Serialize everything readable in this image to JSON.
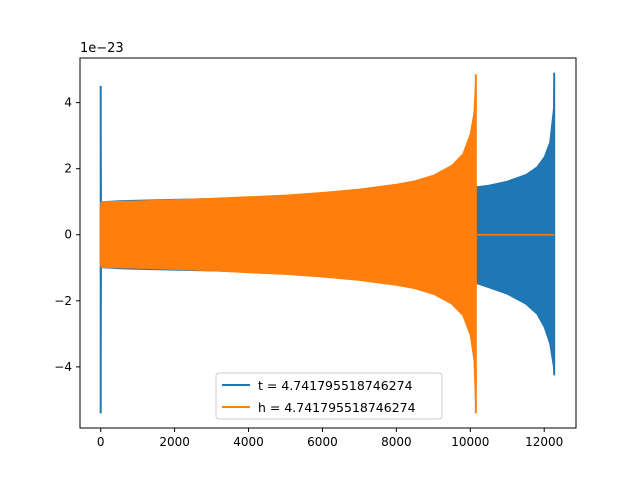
{
  "chart_data": {
    "type": "line",
    "title": "",
    "xlabel": "",
    "ylabel": "",
    "offset_label": "1e−23",
    "xlim": [
      -560,
      12860
    ],
    "ylim": [
      -5.85,
      5.35
    ],
    "xticks": [
      0,
      2000,
      4000,
      6000,
      8000,
      10000,
      12000
    ],
    "xtick_labels": [
      "0",
      "2000",
      "4000",
      "6000",
      "8000",
      "10000",
      "12000"
    ],
    "yticks": [
      -4,
      -2,
      0,
      2,
      4
    ],
    "ytick_labels": [
      "−4",
      "−2",
      "0",
      "2",
      "4"
    ],
    "grid": false,
    "legend_position": "lower center",
    "series": [
      {
        "name": "t = 4.741795518746274",
        "color": "#1f77b4",
        "envelope": {
          "x": [
            0,
            20,
            60,
            500,
            2000,
            4000,
            6000,
            8000,
            9000,
            10000,
            10150,
            10500,
            11000,
            11500,
            11800,
            12000,
            12150,
            12250,
            12270
          ],
          "upper": [
            4.5,
            1.0,
            1.0,
            1.03,
            1.07,
            1.12,
            1.18,
            1.28,
            1.35,
            1.43,
            1.45,
            1.5,
            1.62,
            1.82,
            2.05,
            2.35,
            2.8,
            3.8,
            4.9
          ],
          "lower": [
            -5.4,
            -1.0,
            -1.0,
            -1.03,
            -1.07,
            -1.12,
            -1.18,
            -1.28,
            -1.35,
            -1.43,
            -1.47,
            -1.6,
            -1.8,
            -2.1,
            -2.4,
            -2.8,
            -3.3,
            -4.0,
            -4.25
          ]
        },
        "spike_start": {
          "x": 0,
          "max": 4.5,
          "min": -5.4
        },
        "spike_end": {
          "x": 12270,
          "max": 4.9,
          "min": -4.25
        }
      },
      {
        "name": "h = 4.741795518746274",
        "color": "#ff7f0e",
        "envelope": {
          "x": [
            0,
            20,
            60,
            500,
            1000,
            2000,
            3000,
            4000,
            5000,
            6000,
            7000,
            8000,
            8500,
            9000,
            9500,
            9800,
            10000,
            10100,
            10150
          ],
          "upper": [
            0.95,
            1.0,
            1.0,
            1.01,
            1.02,
            1.06,
            1.1,
            1.15,
            1.2,
            1.28,
            1.38,
            1.53,
            1.63,
            1.8,
            2.1,
            2.45,
            3.05,
            3.7,
            4.85
          ],
          "lower": [
            -0.95,
            -0.98,
            -1.0,
            -1.0,
            -1.01,
            -1.05,
            -1.09,
            -1.15,
            -1.2,
            -1.28,
            -1.38,
            -1.53,
            -1.63,
            -1.8,
            -2.1,
            -2.45,
            -3.05,
            -3.8,
            -5.4
          ]
        },
        "flat_segment": {
          "x_start": 10150,
          "x_end": 12270,
          "y": 0
        },
        "spike_end": {
          "x": 10150,
          "max": 4.85,
          "min": -5.4
        }
      }
    ]
  }
}
